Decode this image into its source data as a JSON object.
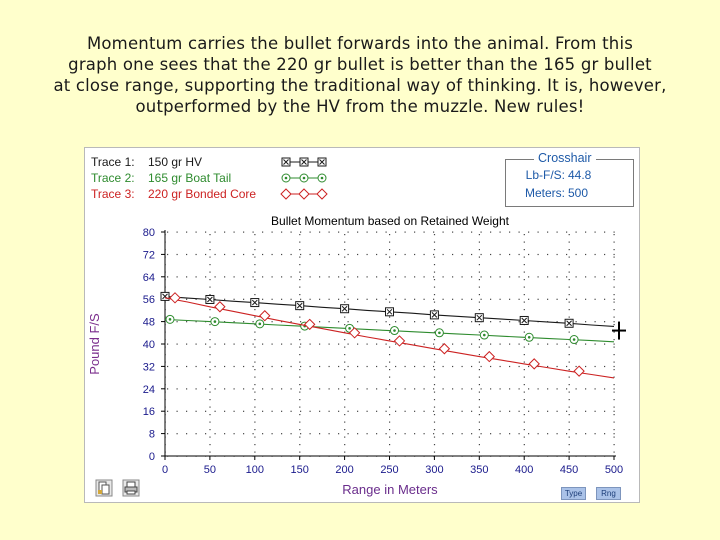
{
  "caption": {
    "lines": [
      "Momentum carries the bullet forwards into the animal. From this",
      "graph one sees that the 220 gr bullet is better than the 165 gr bullet",
      "at close range, supporting the traditional way of thinking. It is, however,",
      "outperformed by the HV from the muzzle. New rules!"
    ]
  },
  "legend": {
    "items": [
      {
        "label": "Trace 1:",
        "value": "150 gr HV",
        "color": "#1a1a1a"
      },
      {
        "label": "Trace 2:",
        "value": "165 gr Boat Tail",
        "color": "#2e8b2e"
      },
      {
        "label": "Trace 3:",
        "value": "220 gr Bonded Core",
        "color": "#cc2222"
      }
    ]
  },
  "crosshair": {
    "title": "Crosshair",
    "rows": [
      {
        "key": "Lb-F/S:",
        "value": "44.8"
      },
      {
        "key": "Meters:",
        "value": "500"
      }
    ]
  },
  "buttons": {
    "type_label": "Type",
    "rng_label": "Rng",
    "copy_icon": "copy-icon",
    "print_icon": "print-icon"
  },
  "chart_data": {
    "type": "line",
    "title": "Bullet Momentum based on Retained Weight",
    "xlabel": "Range in Meters",
    "ylabel": "Pound F/S",
    "xlim": [
      0,
      500
    ],
    "ylim": [
      0,
      80
    ],
    "x_ticks": [
      "0",
      "50",
      "100",
      "150",
      "200",
      "250",
      "300",
      "350",
      "400",
      "450",
      "500"
    ],
    "y_ticks": [
      "0",
      "8",
      "16",
      "24",
      "32",
      "40",
      "48",
      "56",
      "64",
      "72",
      "80"
    ],
    "grid": true,
    "x": [
      0,
      25,
      50,
      75,
      100,
      125,
      150,
      175,
      200,
      225,
      250,
      275,
      300,
      325,
      350,
      375,
      400,
      425,
      450,
      475,
      500
    ],
    "series": [
      {
        "name": "150 gr HV",
        "color": "#1a1a1a",
        "marker": "square-x",
        "values": [
          57.0,
          56.4,
          55.9,
          55.3,
          54.8,
          54.2,
          53.7,
          53.1,
          52.6,
          52.0,
          51.5,
          51.0,
          50.4,
          49.9,
          49.4,
          48.9,
          48.4,
          47.9,
          47.4,
          46.8,
          46.3
        ]
      },
      {
        "name": "165 gr Boat Tail",
        "color": "#2e8b2e",
        "marker": "circle-dot",
        "values": [
          48.8,
          48.4,
          48.0,
          47.6,
          47.2,
          46.8,
          46.4,
          46.0,
          45.6,
          45.2,
          44.8,
          44.4,
          44.0,
          43.6,
          43.2,
          42.8,
          42.4,
          42.0,
          41.6,
          41.2,
          40.8
        ]
      },
      {
        "name": "220 gr Bonded Core",
        "color": "#cc2222",
        "marker": "diamond",
        "values": [
          56.5,
          55.0,
          53.3,
          51.7,
          50.1,
          48.5,
          47.0,
          45.5,
          44.0,
          42.5,
          41.1,
          39.7,
          38.3,
          36.9,
          35.5,
          34.2,
          32.9,
          31.6,
          30.3,
          29.1,
          27.9
        ]
      }
    ],
    "marker_x": [
      0,
      50,
      100,
      150,
      200,
      250,
      300,
      350,
      400,
      450,
      500
    ]
  }
}
